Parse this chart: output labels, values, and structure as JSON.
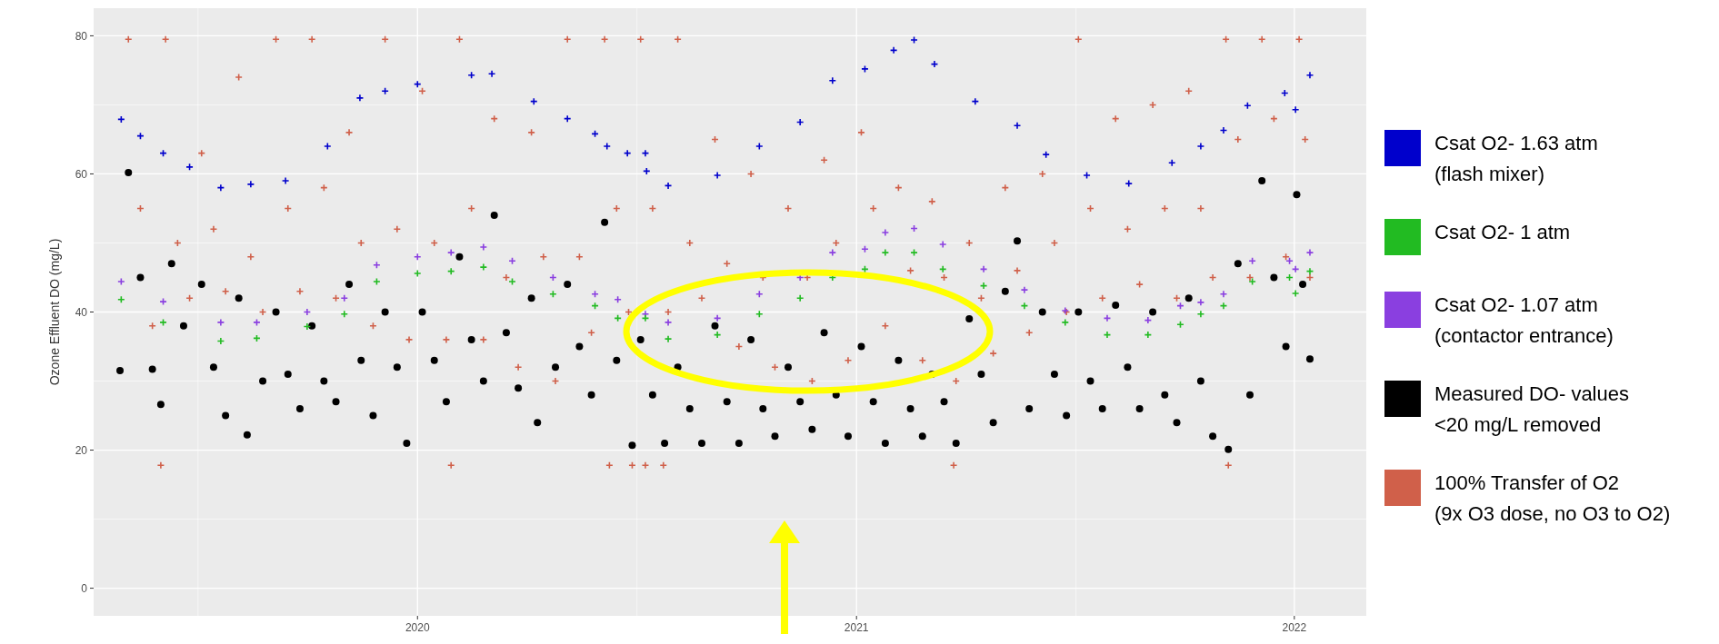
{
  "chart_data": {
    "type": "scatter",
    "ylabel": "Ozone Effluent DO (mg/L)",
    "xlim": [
      "2019-04-06",
      "2022-03-02"
    ],
    "ylim": [
      -4,
      84
    ],
    "xticks": [
      "2020",
      "2021",
      "2022"
    ],
    "yticks": [
      0,
      20,
      40,
      60,
      80
    ],
    "grid": true,
    "legend": "right",
    "series": [
      {
        "name": "Csat O2- 1.63 atm\n(flash mixer)",
        "color": "#0000cc",
        "marker": "cross",
        "x": [
          "2019-04-29",
          "2019-05-15",
          "2019-06-03",
          "2019-06-25",
          "2019-07-21",
          "2019-08-15",
          "2019-09-13",
          "2019-10-18",
          "2019-11-14",
          "2019-12-05",
          "2020-01-01",
          "2020-02-15",
          "2020-03-03",
          "2020-04-07",
          "2020-05-05",
          "2020-05-28",
          "2020-06-07",
          "2020-06-24",
          "2020-07-09",
          "2020-07-10",
          "2020-07-28",
          "2020-09-07",
          "2020-10-12",
          "2020-11-15",
          "2020-12-12",
          "2021-01-08",
          "2021-02-01",
          "2021-02-18",
          "2021-03-07",
          "2021-04-10",
          "2021-05-15",
          "2021-06-08",
          "2021-07-12",
          "2021-08-16",
          "2021-09-21",
          "2021-10-15",
          "2021-11-03",
          "2021-11-23",
          "2021-12-24",
          "2022-01-02",
          "2022-01-14"
        ],
        "values": [
          67.9,
          65.5,
          63,
          61,
          58,
          58.5,
          59,
          64,
          71,
          72,
          73,
          74.3,
          74.5,
          70.5,
          68,
          65.8,
          64,
          63,
          63,
          60.4,
          58.3,
          59.8,
          64,
          67.5,
          73.5,
          75.2,
          77.9,
          79.4,
          75.9,
          70.5,
          67,
          62.8,
          59.8,
          58.6,
          61.6,
          64,
          66.3,
          69.9,
          71.7,
          69.3,
          74.3
        ]
      },
      {
        "name": "Csat O2- 1 atm",
        "color": "#22bb22",
        "marker": "cross",
        "x": [
          "2019-04-29",
          "2019-06-03",
          "2019-07-21",
          "2019-08-20",
          "2019-10-01",
          "2019-11-01",
          "2019-11-28",
          "2020-01-01",
          "2020-01-29",
          "2020-02-25",
          "2020-03-20",
          "2020-04-23",
          "2020-05-28",
          "2020-06-16",
          "2020-07-09",
          "2020-07-28",
          "2020-09-07",
          "2020-10-12",
          "2020-11-15",
          "2020-12-12",
          "2021-01-08",
          "2021-01-25",
          "2021-02-18",
          "2021-03-14",
          "2021-04-17",
          "2021-05-21",
          "2021-06-24",
          "2021-07-29",
          "2021-09-01",
          "2021-09-28",
          "2021-10-15",
          "2021-11-03",
          "2021-11-27",
          "2021-12-28",
          "2022-01-02",
          "2022-01-14"
        ],
        "values": [
          41.8,
          38.5,
          35.8,
          36.2,
          37.9,
          39.7,
          44.4,
          45.6,
          45.9,
          46.5,
          44.4,
          42.6,
          40.9,
          39.1,
          39.1,
          36.1,
          36.7,
          39.7,
          42,
          45,
          46.2,
          48.6,
          48.6,
          46.2,
          43.8,
          40.9,
          38.5,
          36.7,
          36.7,
          38.2,
          39.7,
          40.9,
          44.4,
          45,
          42.7,
          45.9
        ]
      },
      {
        "name": "Csat O2- 1.07 atm\n(contactor entrance)",
        "color": "#8a3fe0",
        "marker": "cross",
        "x": [
          "2019-04-29",
          "2019-06-03",
          "2019-07-21",
          "2019-08-20",
          "2019-10-01",
          "2019-11-01",
          "2019-11-28",
          "2020-01-01",
          "2020-01-29",
          "2020-02-25",
          "2020-03-20",
          "2020-04-23",
          "2020-05-28",
          "2020-06-16",
          "2020-07-09",
          "2020-07-28",
          "2020-09-07",
          "2020-10-12",
          "2020-11-15",
          "2020-12-12",
          "2021-01-08",
          "2021-01-25",
          "2021-02-18",
          "2021-03-14",
          "2021-04-17",
          "2021-05-21",
          "2021-06-24",
          "2021-07-29",
          "2021-09-01",
          "2021-09-28",
          "2021-10-15",
          "2021-11-03",
          "2021-11-27",
          "2021-12-28",
          "2022-01-02",
          "2022-01-14"
        ],
        "values": [
          44.4,
          41.5,
          38.5,
          38.5,
          40,
          42,
          46.8,
          48,
          48.6,
          49.4,
          47.4,
          45,
          42.6,
          41.8,
          39.7,
          38.5,
          39.1,
          42.6,
          45,
          48.6,
          49.1,
          51.5,
          52.1,
          49.8,
          46.2,
          43.2,
          40.2,
          39.1,
          38.8,
          40.9,
          41.4,
          42.6,
          47.4,
          47.4,
          46.2,
          48.6
        ]
      },
      {
        "name": "Measured DO- values\n<20 mg/L removed",
        "color": "#000000",
        "marker": "circle",
        "x": [
          "2019-04-28",
          "2019-05-05",
          "2019-05-15",
          "2019-05-25",
          "2019-06-01",
          "2019-06-10",
          "2019-06-20",
          "2019-07-05",
          "2019-07-15",
          "2019-07-25",
          "2019-08-05",
          "2019-08-12",
          "2019-08-25",
          "2019-09-05",
          "2019-09-15",
          "2019-09-25",
          "2019-10-05",
          "2019-10-15",
          "2019-10-25",
          "2019-11-05",
          "2019-11-15",
          "2019-11-25",
          "2019-12-05",
          "2019-12-15",
          "2019-12-23",
          "2020-01-05",
          "2020-01-15",
          "2020-01-25",
          "2020-02-05",
          "2020-02-15",
          "2020-02-25",
          "2020-03-05",
          "2020-03-15",
          "2020-03-25",
          "2020-04-05",
          "2020-04-10",
          "2020-04-25",
          "2020-05-05",
          "2020-05-15",
          "2020-05-25",
          "2020-06-05",
          "2020-06-15",
          "2020-06-28",
          "2020-07-05",
          "2020-07-15",
          "2020-07-25",
          "2020-08-05",
          "2020-08-15",
          "2020-08-25",
          "2020-09-05",
          "2020-09-15",
          "2020-09-25",
          "2020-10-05",
          "2020-10-15",
          "2020-10-25",
          "2020-11-05",
          "2020-11-15",
          "2020-11-25",
          "2020-12-05",
          "2020-12-15",
          "2020-12-25",
          "2021-01-05",
          "2021-01-15",
          "2021-01-25",
          "2021-02-05",
          "2021-02-15",
          "2021-02-25",
          "2021-03-05",
          "2021-03-15",
          "2021-03-25",
          "2021-04-05",
          "2021-04-15",
          "2021-04-25",
          "2021-05-05",
          "2021-05-15",
          "2021-05-25",
          "2021-06-05",
          "2021-06-15",
          "2021-06-25",
          "2021-07-05",
          "2021-07-15",
          "2021-07-25",
          "2021-08-05",
          "2021-08-15",
          "2021-08-25",
          "2021-09-05",
          "2021-09-15",
          "2021-09-25",
          "2021-10-05",
          "2021-10-15",
          "2021-10-25",
          "2021-11-07",
          "2021-11-15",
          "2021-11-25",
          "2021-12-05",
          "2021-12-15",
          "2021-12-25",
          "2022-01-03",
          "2022-01-08",
          "2022-01-14"
        ],
        "values": [
          31.5,
          60.2,
          45,
          31.7,
          26.6,
          47,
          38,
          44,
          32,
          25,
          42,
          22.2,
          30,
          40,
          31,
          26,
          38,
          30,
          27,
          44,
          33,
          25,
          40,
          32,
          21,
          40,
          33,
          27,
          48,
          36,
          30,
          54,
          37,
          29,
          42,
          24,
          32,
          44,
          35,
          28,
          53,
          33,
          20.7,
          36,
          28,
          21,
          32,
          26,
          21,
          38,
          27,
          21,
          36,
          26,
          22,
          32,
          27,
          23,
          37,
          28,
          22,
          35,
          27,
          21,
          33,
          26,
          22,
          31,
          27,
          21,
          39,
          31,
          24,
          43,
          50.3,
          26,
          40,
          31,
          25,
          40,
          30,
          26,
          41,
          32,
          26,
          40,
          28,
          24,
          42,
          30,
          22,
          20.1,
          47,
          28,
          59,
          45,
          35,
          57,
          44,
          33.2
        ]
      },
      {
        "name": " 100% Transfer of O2\n(9x O3 dose, no O3 to O2)",
        "color": "#d0604a",
        "marker": "cross",
        "x": [
          "2019-05-05",
          "2019-05-15",
          "2019-05-25",
          "2019-06-01",
          "2019-06-05",
          "2019-06-15",
          "2019-06-25",
          "2019-07-05",
          "2019-07-15",
          "2019-07-25",
          "2019-08-05",
          "2019-08-15",
          "2019-08-25",
          "2019-09-05",
          "2019-09-15",
          "2019-09-25",
          "2019-10-05",
          "2019-10-15",
          "2019-10-25",
          "2019-11-05",
          "2019-11-15",
          "2019-11-25",
          "2019-12-05",
          "2019-12-15",
          "2019-12-25",
          "2020-01-05",
          "2020-01-15",
          "2020-01-25",
          "2020-01-29",
          "2020-02-05",
          "2020-02-15",
          "2020-02-25",
          "2020-03-05",
          "2020-03-15",
          "2020-03-25",
          "2020-04-05",
          "2020-04-15",
          "2020-04-25",
          "2020-05-05",
          "2020-05-15",
          "2020-05-25",
          "2020-06-05",
          "2020-06-09",
          "2020-06-15",
          "2020-06-25",
          "2020-06-28",
          "2020-07-05",
          "2020-07-09",
          "2020-07-15",
          "2020-07-24",
          "2020-07-28",
          "2020-08-05",
          "2020-08-15",
          "2020-08-25",
          "2020-09-05",
          "2020-09-15",
          "2020-09-25",
          "2020-10-05",
          "2020-10-15",
          "2020-10-25",
          "2020-11-05",
          "2020-11-21",
          "2020-11-25",
          "2020-12-05",
          "2020-12-15",
          "2020-12-25",
          "2021-01-05",
          "2021-01-15",
          "2021-01-25",
          "2021-02-05",
          "2021-02-15",
          "2021-02-25",
          "2021-03-05",
          "2021-03-15",
          "2021-03-23",
          "2021-03-25",
          "2021-04-05",
          "2021-04-15",
          "2021-04-25",
          "2021-05-05",
          "2021-05-15",
          "2021-05-25",
          "2021-06-05",
          "2021-06-15",
          "2021-06-25",
          "2021-07-05",
          "2021-07-15",
          "2021-07-25",
          "2021-08-05",
          "2021-08-15",
          "2021-08-25",
          "2021-09-05",
          "2021-09-15",
          "2021-09-25",
          "2021-10-05",
          "2021-10-15",
          "2021-10-25",
          "2021-11-05",
          "2021-11-07",
          "2021-11-15",
          "2021-11-25",
          "2021-12-05",
          "2021-12-15",
          "2021-12-25",
          "2022-01-05",
          "2022-01-10",
          "2022-01-14"
        ],
        "values": [
          79.5,
          55,
          38,
          17.8,
          79.5,
          50,
          42,
          63,
          52,
          43,
          74,
          48,
          40,
          79.5,
          55,
          43,
          79.5,
          58,
          42,
          66,
          50,
          38,
          79.5,
          52,
          36,
          72,
          50,
          36,
          17.8,
          79.5,
          55,
          36,
          68,
          45,
          32,
          66,
          48,
          30,
          79.5,
          48,
          37,
          79.5,
          17.8,
          55,
          40,
          17.8,
          79.5,
          17.8,
          55,
          17.8,
          40,
          79.5,
          50,
          42,
          65,
          47,
          35,
          60,
          45,
          32,
          55,
          45,
          30,
          62,
          50,
          33,
          66,
          55,
          38,
          58,
          46,
          33,
          56,
          45,
          17.8,
          30,
          50,
          42,
          34,
          58,
          46,
          37,
          60,
          50,
          40,
          79.5,
          55,
          42,
          68,
          52,
          44,
          70,
          55,
          42,
          72,
          55,
          45,
          79.5,
          17.8,
          65,
          45,
          79.5,
          68,
          48,
          79.5,
          65,
          45
        ]
      }
    ]
  }
}
